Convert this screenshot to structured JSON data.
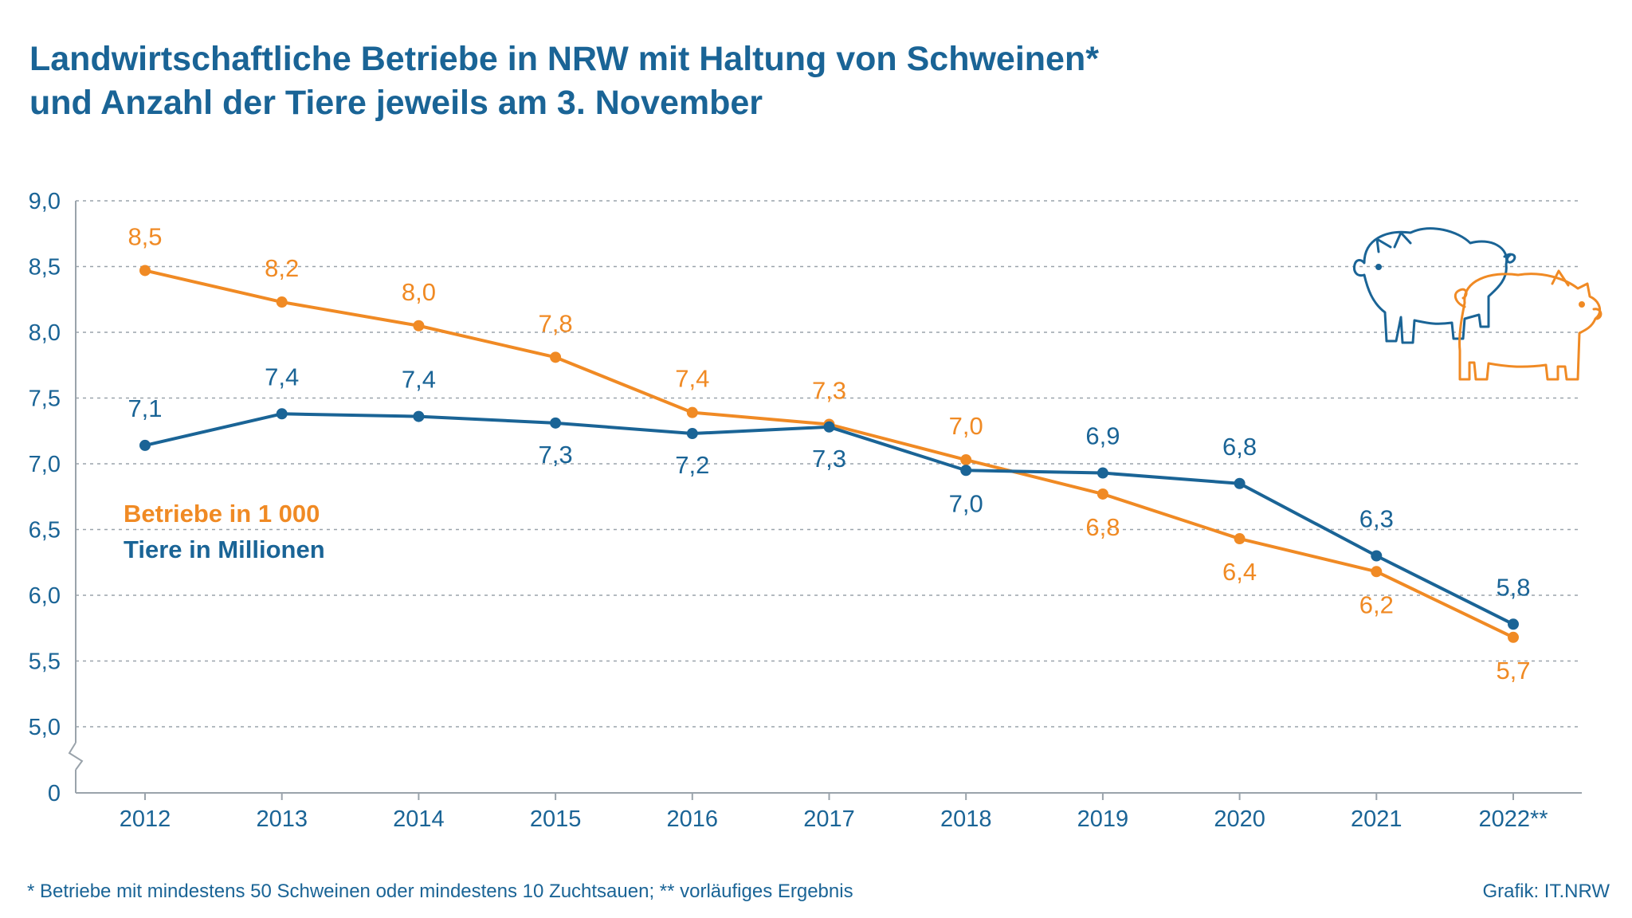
{
  "title": {
    "line1": "Landwirtschaftliche Betriebe in NRW mit Haltung von Schweinen*",
    "line2": "und Anzahl der Tiere jeweils am 3. November"
  },
  "legend": {
    "betriebe": "Betriebe in 1 000",
    "tiere": "Tiere in Millionen"
  },
  "footnote": "*  Betriebe mit mindestens 50 Schweinen oder mindestens 10 Zuchtsauen; **  vorläufiges Ergebnis",
  "credit": "Grafik: IT.NRW",
  "colors": {
    "betriebe": "#f08a24",
    "tiere": "#1a6496",
    "grid": "#9aa3ab"
  },
  "icons": [
    "pig-icon-blue",
    "pig-icon-orange"
  ],
  "chart_data": {
    "type": "line",
    "categories": [
      "2012",
      "2013",
      "2014",
      "2015",
      "2016",
      "2017",
      "2018",
      "2019",
      "2020",
      "2021",
      "2022**"
    ],
    "y_ticks": [
      "9,0",
      "8,5",
      "8,0",
      "7,5",
      "7,0",
      "6,5",
      "6,0",
      "5,5",
      "5,0",
      "0"
    ],
    "ylim": [
      5.0,
      9.0
    ],
    "axis_break": true,
    "grid": true,
    "legend_position": "middle-left",
    "series": [
      {
        "name": "Betriebe in 1 000",
        "color": "#f08a24",
        "values": [
          8.47,
          8.23,
          8.05,
          7.81,
          7.39,
          7.3,
          7.03,
          6.77,
          6.43,
          6.18,
          5.68
        ],
        "labels": [
          "8,5",
          "8,2",
          "8,0",
          "7,8",
          "7,4",
          "7,3",
          "7,0",
          "6,8",
          "6,4",
          "6,2",
          "5,7"
        ]
      },
      {
        "name": "Tiere in Millionen",
        "color": "#1a6496",
        "values": [
          7.14,
          7.38,
          7.36,
          7.31,
          7.23,
          7.28,
          6.95,
          6.93,
          6.85,
          6.3,
          5.78
        ],
        "labels": [
          "7,1",
          "7,4",
          "7,4",
          "7,3",
          "7,2",
          "7,3",
          "7,0",
          "6,9",
          "6,8",
          "6,3",
          "5,8"
        ]
      }
    ]
  }
}
